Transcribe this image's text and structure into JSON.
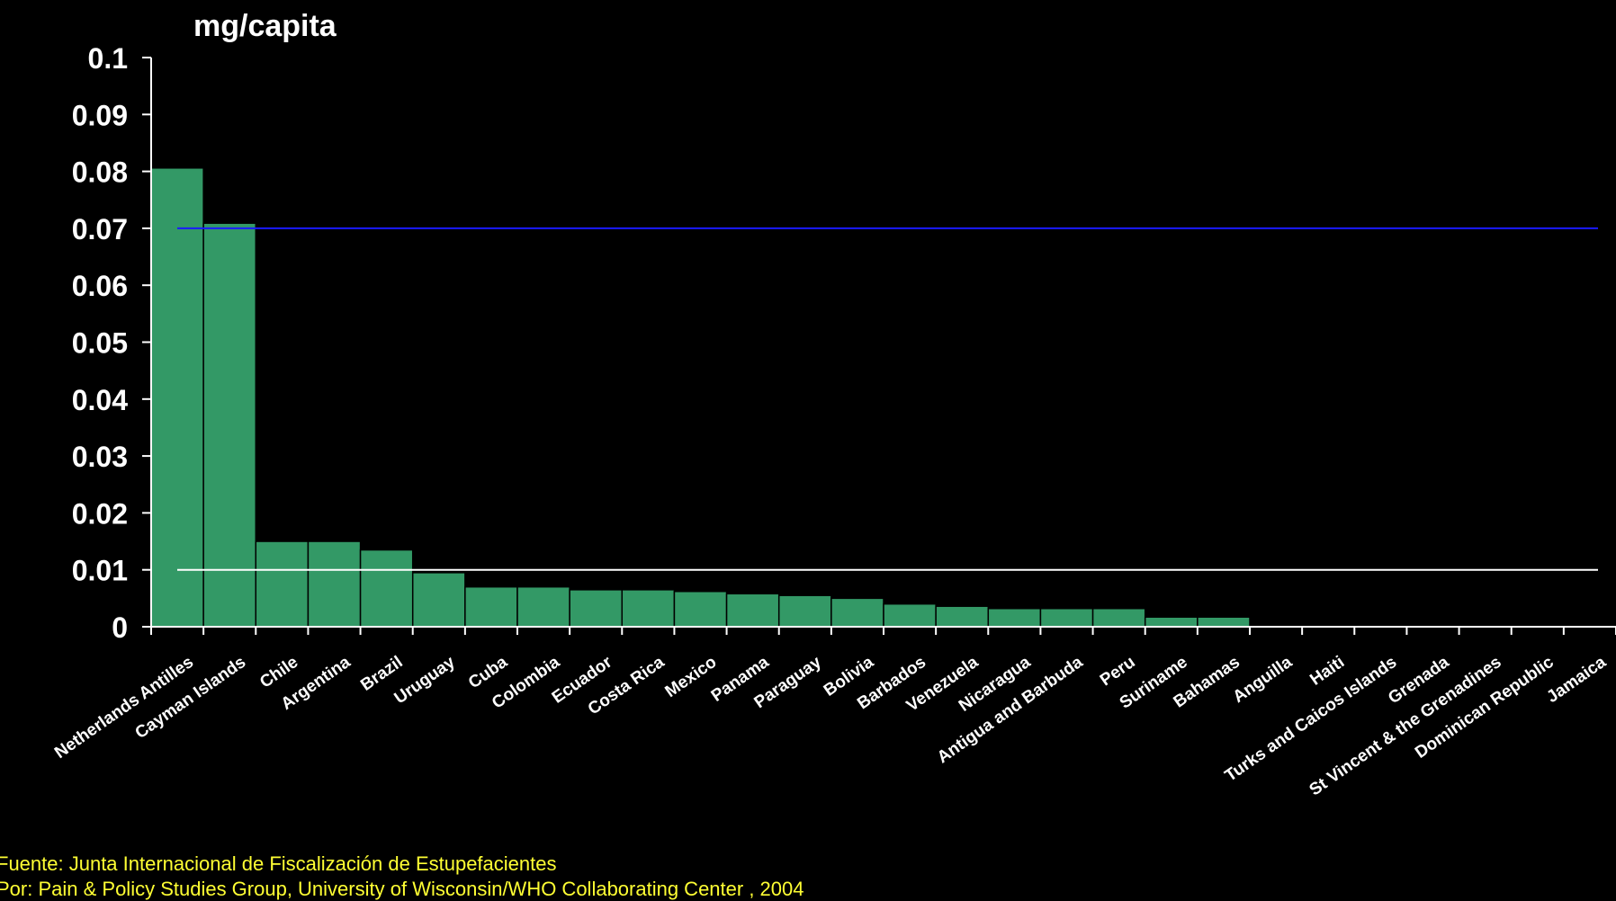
{
  "chart_data": {
    "type": "bar",
    "ylabel": "mg/capita",
    "ylim": [
      0,
      0.1
    ],
    "yticks": [
      "0",
      "0.01",
      "0.02",
      "0.03",
      "0.04",
      "0.05",
      "0.06",
      "0.07",
      "0.08",
      "0.09",
      "0.1"
    ],
    "categories": [
      "Netherlands Antilles",
      "Cayman Islands",
      "Chile",
      "Argentina",
      "Brazil",
      "Uruguay",
      "Cuba",
      "Colombia",
      "Ecuador",
      "Costa Rica",
      "Mexico",
      "Panama",
      "Paraguay",
      "Bolivia",
      "Barbados",
      "Venezuela",
      "Nicaragua",
      "Antigua and Barbuda",
      "Peru",
      "Suriname",
      "Bahamas",
      "Anguilla",
      "Haiti",
      "Turks and Caicos Islands",
      "Grenada",
      "St Vincent & the Grenadines",
      "Dominican Republic",
      "Jamaica"
    ],
    "values": [
      0.0806,
      0.0709,
      0.015,
      0.015,
      0.0135,
      0.0095,
      0.007,
      0.007,
      0.0065,
      0.0065,
      0.0062,
      0.0058,
      0.0055,
      0.005,
      0.004,
      0.0036,
      0.0032,
      0.0032,
      0.0032,
      0.0017,
      0.0017,
      0,
      0,
      0,
      0,
      0,
      0,
      0
    ],
    "reference_lines": [
      {
        "value": 0.07,
        "color": "#1a1aff"
      },
      {
        "value": 0.01,
        "color": "#ffffff"
      }
    ],
    "bar_color": "#339966",
    "grid": false
  },
  "footer": {
    "source_line": "Fuente:  Junta Internacional de Fiscalización de Estupefacientes",
    "credit_line": "Por:  Pain & Policy Studies Group, University of Wisconsin/WHO Collaborating Center , 2004"
  },
  "colors": {
    "background": "#000000",
    "axis": "#ffffff",
    "footer_text": "#ffff33"
  }
}
